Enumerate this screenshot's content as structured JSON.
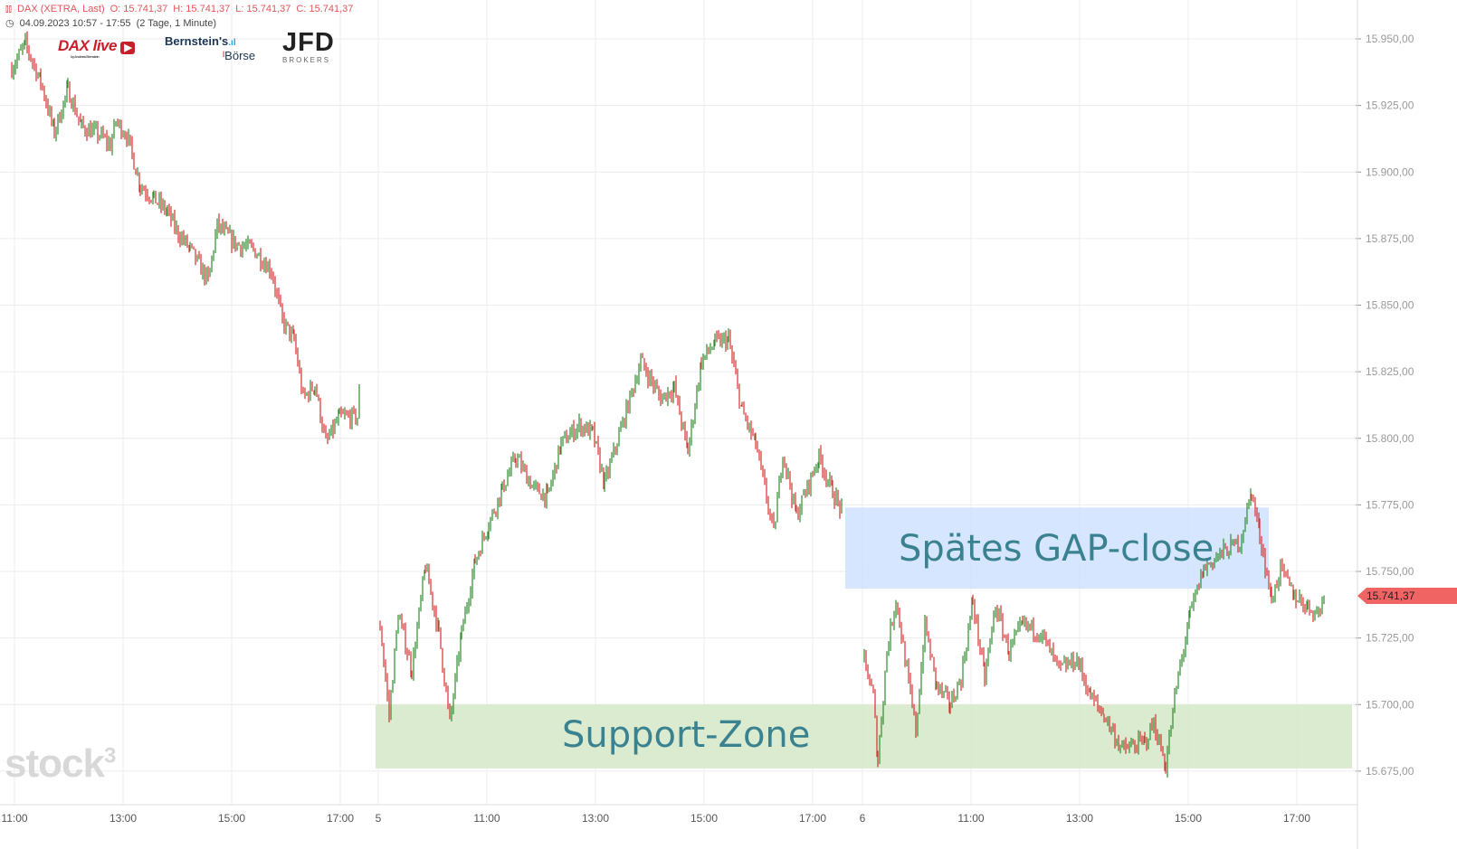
{
  "header": {
    "instrument": "DAX (XETRA, Last)",
    "open": "O: 15.741,37",
    "high": "H: 15.741,37",
    "low": "L: 15.741,37",
    "close": "C: 15.741,37",
    "range": "04.09.2023 10:57 - 17:55",
    "interval": "(2 Tage, 1 Minute)"
  },
  "logos": {
    "daxlive": "DAX live",
    "daxlive_sub": "by Andreas Bernstein",
    "bernstein": "Bernstein's",
    "boerse": "Börse",
    "jfd": "JFD",
    "jfd_sub": "BROKERS"
  },
  "watermark": "stock3",
  "last_price_label": "15.741,37",
  "colors": {
    "up": "#2e8b2e",
    "down": "#d43030",
    "gap_zone": "#cfe2ff",
    "support_zone": "#d5e8c8",
    "last_price": "#f06464",
    "annotation_text": "#3b8290"
  },
  "chart_data": {
    "type": "candlestick",
    "title": "",
    "y_ticks": [
      15675,
      15700,
      15725,
      15750,
      15775,
      15800,
      15825,
      15850,
      15875,
      15900,
      15925,
      15950
    ],
    "y_tick_labels": [
      "15.675,00",
      "15.700,00",
      "15.725,00",
      "15.750,00",
      "15.775,00",
      "15.800,00",
      "15.825,00",
      "15.850,00",
      "15.875,00",
      "15.900,00",
      "15.925,00",
      "15.950,00"
    ],
    "ylim": [
      15665,
      15962
    ],
    "x_tick_labels": [
      {
        "day": 1,
        "time": "11:00",
        "label": "11:00"
      },
      {
        "day": 1,
        "time": "13:00",
        "label": "13:00"
      },
      {
        "day": 1,
        "time": "15:00",
        "label": "15:00"
      },
      {
        "day": 1,
        "time": "17:00",
        "label": "17:00"
      },
      {
        "day": 2,
        "time": "09:00",
        "label": "5"
      },
      {
        "day": 2,
        "time": "11:00",
        "label": "11:00"
      },
      {
        "day": 2,
        "time": "13:00",
        "label": "13:00"
      },
      {
        "day": 2,
        "time": "15:00",
        "label": "15:00"
      },
      {
        "day": 2,
        "time": "17:00",
        "label": "17:00"
      },
      {
        "day": 3,
        "time": "09:00",
        "label": "6"
      },
      {
        "day": 3,
        "time": "11:00",
        "label": "11:00"
      },
      {
        "day": 3,
        "time": "13:00",
        "label": "13:00"
      },
      {
        "day": 3,
        "time": "15:00",
        "label": "15:00"
      },
      {
        "day": 3,
        "time": "17:00",
        "label": "17:00"
      }
    ],
    "grid": true,
    "price_path": [
      {
        "day": 1,
        "points": [
          [
            "10:57",
            15939
          ],
          [
            "11:12",
            15948
          ],
          [
            "11:29",
            15934
          ],
          [
            "11:44",
            15915
          ],
          [
            "11:59",
            15931
          ],
          [
            "12:14",
            15917
          ],
          [
            "12:34",
            15914
          ],
          [
            "12:46",
            15910
          ],
          [
            "12:52",
            15919
          ],
          [
            "13:04",
            15914
          ],
          [
            "13:19",
            15895
          ],
          [
            "13:34",
            15890
          ],
          [
            "13:49",
            15885
          ],
          [
            "13:59",
            15878
          ],
          [
            "14:14",
            15871
          ],
          [
            "14:34",
            15859
          ],
          [
            "14:44",
            15880
          ],
          [
            "15:04",
            15873
          ],
          [
            "15:24",
            15871
          ],
          [
            "15:44",
            15863
          ],
          [
            "15:56",
            15844
          ],
          [
            "16:09",
            15837
          ],
          [
            "16:19",
            15815
          ],
          [
            "16:32",
            15820
          ],
          [
            "16:44",
            15798
          ],
          [
            "16:59",
            15808
          ],
          [
            "17:19",
            15808
          ],
          [
            "17:23",
            15825
          ]
        ]
      },
      {
        "day": 2,
        "points": [
          [
            "09:02",
            15730
          ],
          [
            "09:12",
            15696
          ],
          [
            "09:22",
            15734
          ],
          [
            "09:37",
            15713
          ],
          [
            "09:52",
            15752
          ],
          [
            "10:07",
            15727
          ],
          [
            "10:19",
            15693
          ],
          [
            "10:32",
            15727
          ],
          [
            "10:47",
            15754
          ],
          [
            "11:02",
            15768
          ],
          [
            "11:17",
            15781
          ],
          [
            "11:32",
            15793
          ],
          [
            "11:52",
            15781
          ],
          [
            "12:07",
            15778
          ],
          [
            "12:22",
            15798
          ],
          [
            "12:42",
            15805
          ],
          [
            "12:57",
            15802
          ],
          [
            "13:10",
            15783
          ],
          [
            "13:32",
            15808
          ],
          [
            "13:50",
            15829
          ],
          [
            "14:12",
            15815
          ],
          [
            "14:27",
            15819
          ],
          [
            "14:42",
            15795
          ],
          [
            "14:57",
            15829
          ],
          [
            "15:12",
            15836
          ],
          [
            "15:27",
            15837
          ],
          [
            "15:42",
            15810
          ],
          [
            "15:57",
            15798
          ],
          [
            "16:17",
            15764
          ],
          [
            "16:27",
            15795
          ],
          [
            "16:42",
            15771
          ],
          [
            "17:07",
            15793
          ],
          [
            "17:22",
            15780
          ],
          [
            "17:34",
            15771
          ]
        ]
      },
      {
        "day": 3,
        "points": [
          [
            "09:02",
            15717
          ],
          [
            "09:12",
            15703
          ],
          [
            "09:17",
            15679
          ],
          [
            "09:27",
            15720
          ],
          [
            "09:37",
            15740
          ],
          [
            "09:47",
            15717
          ],
          [
            "09:59",
            15690
          ],
          [
            "10:09",
            15730
          ],
          [
            "10:22",
            15707
          ],
          [
            "10:37",
            15700
          ],
          [
            "10:49",
            15710
          ],
          [
            "11:02",
            15739
          ],
          [
            "11:15",
            15710
          ],
          [
            "11:27",
            15737
          ],
          [
            "11:42",
            15720
          ],
          [
            "11:57",
            15730
          ],
          [
            "12:17",
            15727
          ],
          [
            "12:37",
            15713
          ],
          [
            "12:57",
            15717
          ],
          [
            "13:12",
            15703
          ],
          [
            "13:27",
            15696
          ],
          [
            "13:47",
            15683
          ],
          [
            "14:12",
            15686
          ],
          [
            "14:22",
            15693
          ],
          [
            "14:35",
            15677
          ],
          [
            "14:47",
            15707
          ],
          [
            "15:02",
            15734
          ],
          [
            "15:17",
            15751
          ],
          [
            "15:37",
            15757
          ],
          [
            "15:57",
            15761
          ],
          [
            "16:10",
            15780
          ],
          [
            "16:19",
            15764
          ],
          [
            "16:32",
            15739
          ],
          [
            "16:42",
            15751
          ],
          [
            "16:57",
            15741
          ],
          [
            "17:12",
            15737
          ],
          [
            "17:22",
            15734
          ],
          [
            "17:32",
            15741.37
          ]
        ]
      }
    ],
    "annotations": [
      {
        "name": "gap-close-zone",
        "label": "Spätes GAP-close",
        "from": {
          "day": 2,
          "time": "17:36"
        },
        "to": {
          "day": 3,
          "time": "16:29"
        },
        "price_low": 15743.5,
        "price_high": 15774
      },
      {
        "name": "support-zone",
        "label": "Support-Zone",
        "from": {
          "day": 2,
          "time": "08:57"
        },
        "to": {
          "day": 3,
          "time": "18:01"
        },
        "price_low": 15676,
        "price_high": 15700
      }
    ],
    "last_price": 15741.37
  }
}
